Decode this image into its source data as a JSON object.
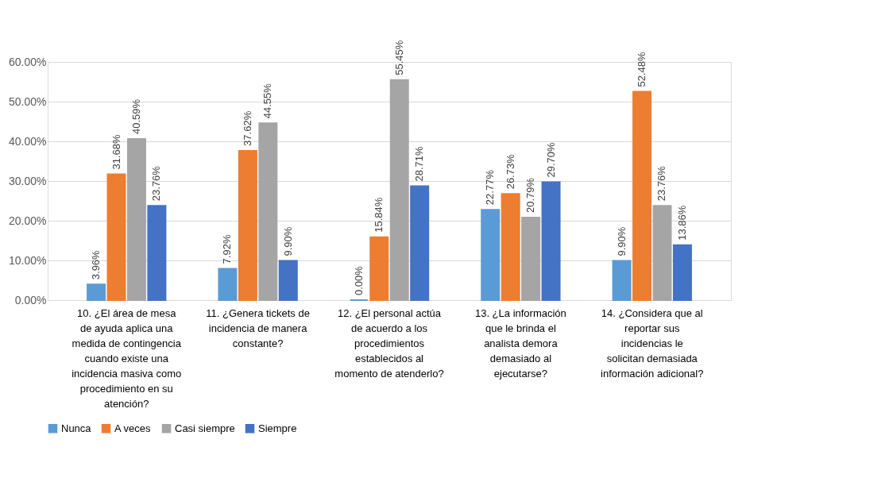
{
  "chart_data": {
    "type": "bar",
    "categories": [
      "10. ¿El área de mesa de ayuda aplica una medida de contingencia cuando existe una incidencia masiva como procedimiento en su atención?",
      "11. ¿Genera tickets de incidencia de manera constante?",
      "12. ¿El personal actúa de acuerdo a los procedimientos establecidos al momento de atenderlo?",
      "13. ¿La información que le brinda el analista demora demasiado al ejecutarse?",
      "14. ¿Considera que al reportar sus incidencias le solicitan demasiada información adicional?"
    ],
    "series": [
      {
        "name": "Nunca",
        "color": "#5b9bd5",
        "values": [
          3.96,
          7.92,
          0.0,
          22.77,
          9.9
        ],
        "value_labels": [
          "3.96%",
          "7.92%",
          "0.00%",
          "22.77%",
          "9.90%"
        ]
      },
      {
        "name": "A veces",
        "color": "#ed7d31",
        "values": [
          31.68,
          37.62,
          15.84,
          26.73,
          52.48
        ],
        "value_labels": [
          "31.68%",
          "37.62%",
          "15.84%",
          "26.73%",
          "52.48%"
        ]
      },
      {
        "name": "Casi siempre",
        "color": "#a5a5a5",
        "values": [
          40.59,
          44.55,
          55.45,
          20.79,
          23.76
        ],
        "value_labels": [
          "40.59%",
          "44.55%",
          "55.45%",
          "20.79%",
          "23.76%"
        ]
      },
      {
        "name": "Siempre",
        "color": "#4472c4",
        "values": [
          23.76,
          9.9,
          28.71,
          29.7,
          13.86
        ],
        "value_labels": [
          "23.76%",
          "9.90%",
          "28.71%",
          "29.70%",
          "13.86%"
        ]
      }
    ],
    "ylim": [
      0,
      60
    ],
    "yticks": [
      {
        "value": 0,
        "label": "0.00%"
      },
      {
        "value": 10,
        "label": "10.00%"
      },
      {
        "value": 20,
        "label": "20.00%"
      },
      {
        "value": 30,
        "label": "30.00%"
      },
      {
        "value": 40,
        "label": "40.00%"
      },
      {
        "value": 50,
        "label": "50.00%"
      },
      {
        "value": 60,
        "label": "60.00%"
      }
    ],
    "grid": "y",
    "legend": "bottom"
  }
}
